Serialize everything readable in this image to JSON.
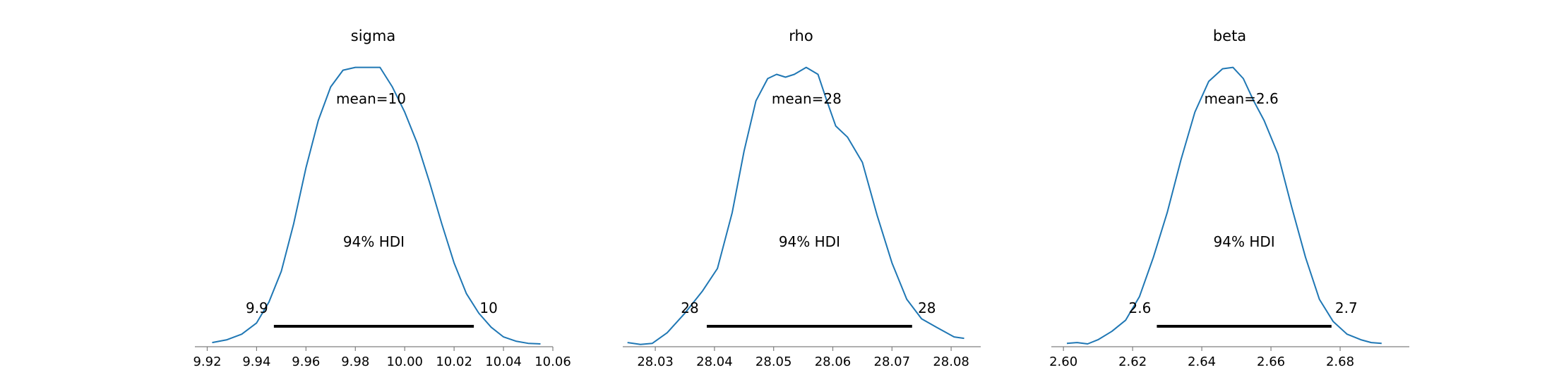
{
  "chart_data": [
    {
      "type": "area",
      "title": "sigma",
      "mean_label": "mean=10",
      "hdi_label": "94% HDI",
      "hdi": [
        9.947,
        10.028
      ],
      "hdi_lower_label": "9.9",
      "hdi_upper_label": "10",
      "xlim": [
        9.915,
        10.06
      ],
      "ylim": [
        0,
        1.1
      ],
      "xticks": [
        9.92,
        9.94,
        9.96,
        9.98,
        10.0,
        10.02,
        10.04,
        10.06
      ],
      "xtick_labels": [
        "9.92",
        "9.94",
        "9.96",
        "9.98",
        "10.00",
        "10.02",
        "10.04",
        "10.06"
      ],
      "grid": false,
      "series": [
        {
          "x": [
            9.922,
            9.928,
            9.934,
            9.94,
            9.945,
            9.95,
            9.955,
            9.96,
            9.965,
            9.97,
            9.975,
            9.98,
            9.985,
            9.99,
            9.995,
            10.0,
            10.005,
            10.01,
            10.015,
            10.02,
            10.025,
            10.03,
            10.035,
            10.04,
            10.045,
            10.05,
            10.055
          ],
          "y": [
            0.015,
            0.025,
            0.045,
            0.085,
            0.16,
            0.27,
            0.44,
            0.64,
            0.81,
            0.93,
            0.99,
            1.0,
            1.0,
            1.0,
            0.93,
            0.84,
            0.73,
            0.59,
            0.44,
            0.3,
            0.19,
            0.12,
            0.07,
            0.035,
            0.02,
            0.012,
            0.01
          ]
        }
      ]
    },
    {
      "type": "area",
      "title": "rho",
      "mean_label": "mean=28",
      "hdi_label": "94% HDI",
      "hdi": [
        28.0387,
        28.0734
      ],
      "hdi_lower_label": "28",
      "hdi_upper_label": "28",
      "xlim": [
        28.0245,
        28.085
      ],
      "ylim": [
        0,
        1.1
      ],
      "xticks": [
        28.03,
        28.04,
        28.05,
        28.06,
        28.07,
        28.08
      ],
      "xtick_labels": [
        "28.03",
        "28.04",
        "28.05",
        "28.06",
        "28.07",
        "28.08"
      ],
      "grid": false,
      "series": [
        {
          "x": [
            28.0253,
            28.0275,
            28.0295,
            28.032,
            28.035,
            28.038,
            28.0405,
            28.043,
            28.045,
            28.047,
            28.049,
            28.0505,
            28.052,
            28.0535,
            28.0555,
            28.0575,
            28.059,
            28.0605,
            28.0625,
            28.065,
            28.0675,
            28.07,
            28.0725,
            28.075,
            28.0775,
            28.0805,
            28.0822
          ],
          "y": [
            0.015,
            0.008,
            0.012,
            0.05,
            0.12,
            0.2,
            0.28,
            0.48,
            0.7,
            0.88,
            0.96,
            0.975,
            0.965,
            0.975,
            1.0,
            0.975,
            0.88,
            0.79,
            0.75,
            0.66,
            0.47,
            0.3,
            0.17,
            0.1,
            0.07,
            0.035,
            0.03
          ]
        }
      ]
    },
    {
      "type": "area",
      "title": "beta",
      "mean_label": "mean=2.6",
      "hdi_label": "94% HDI",
      "hdi": [
        2.627,
        2.6775
      ],
      "hdi_lower_label": "2.6",
      "hdi_upper_label": "2.7",
      "xlim": [
        2.5965,
        2.7
      ],
      "ylim": [
        0,
        1.1
      ],
      "xticks": [
        2.6,
        2.62,
        2.64,
        2.66,
        2.68
      ],
      "xtick_labels": [
        "2.60",
        "2.62",
        "2.64",
        "2.66",
        "2.68"
      ],
      "grid": false,
      "series": [
        {
          "x": [
            2.601,
            2.604,
            2.607,
            2.61,
            2.614,
            2.618,
            2.622,
            2.626,
            2.63,
            2.634,
            2.638,
            2.642,
            2.646,
            2.649,
            2.652,
            2.655,
            2.658,
            2.662,
            2.666,
            2.67,
            2.674,
            2.678,
            2.682,
            2.686,
            2.689,
            2.692
          ],
          "y": [
            0.012,
            0.015,
            0.01,
            0.025,
            0.055,
            0.095,
            0.18,
            0.32,
            0.48,
            0.67,
            0.84,
            0.95,
            0.995,
            1.0,
            0.96,
            0.88,
            0.81,
            0.69,
            0.5,
            0.32,
            0.17,
            0.09,
            0.045,
            0.025,
            0.015,
            0.012
          ]
        }
      ]
    }
  ]
}
